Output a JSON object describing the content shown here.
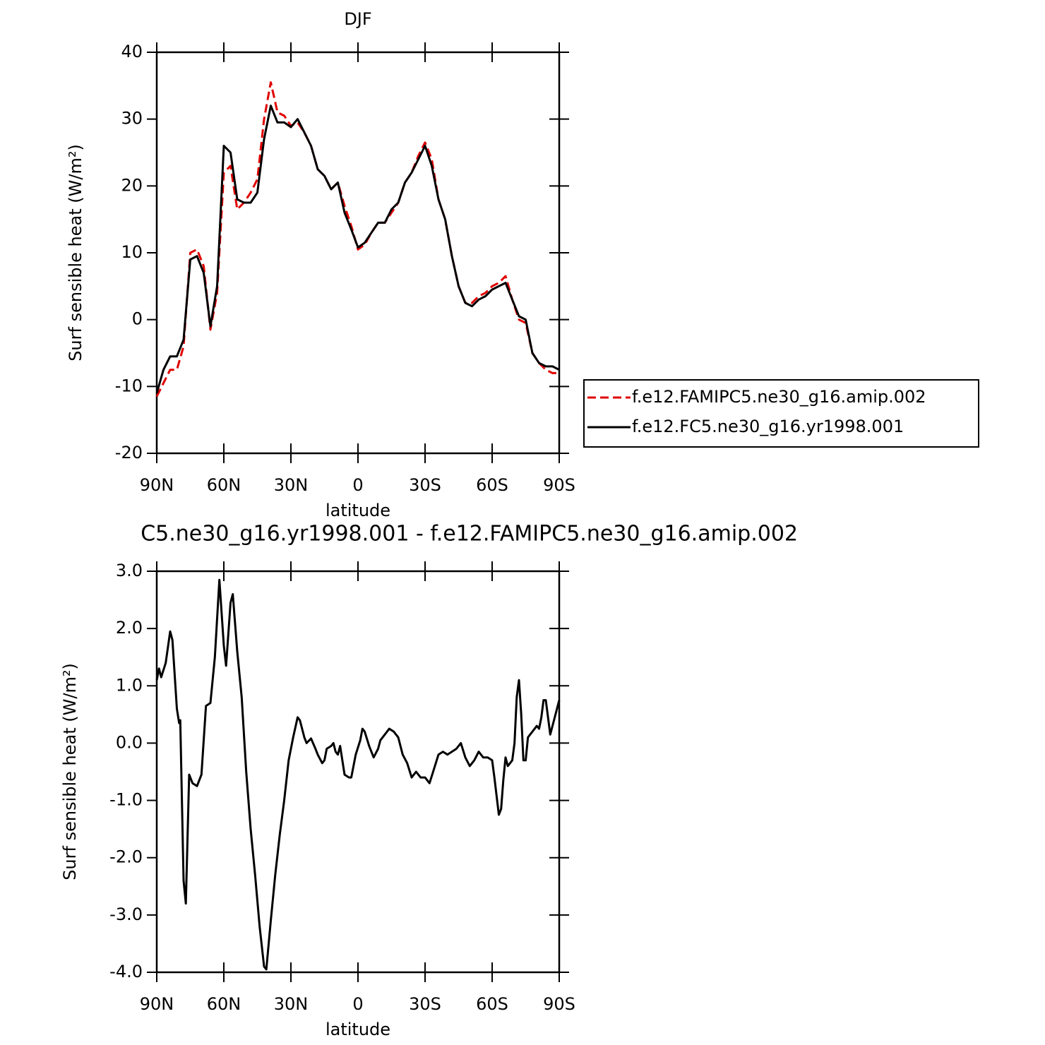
{
  "chart_data": [
    {
      "type": "line",
      "title": "DJF",
      "xlabel": "latitude",
      "ylabel": "Surf sensible heat (W/m²)",
      "x": [
        90,
        87,
        84,
        81,
        78,
        75,
        72,
        69,
        66,
        63,
        60,
        57,
        54,
        51,
        48,
        45,
        42,
        39,
        36,
        33,
        30,
        27,
        24,
        21,
        18,
        15,
        12,
        9,
        6,
        3,
        0,
        -3,
        -6,
        -9,
        -12,
        -15,
        -18,
        -21,
        -24,
        -27,
        -30,
        -33,
        -36,
        -39,
        -42,
        -45,
        -48,
        -51,
        -54,
        -57,
        -60,
        -63,
        -66,
        -69,
        -72,
        -75,
        -78,
        -81,
        -84,
        -87,
        -90
      ],
      "series": [
        {
          "name": "f.e12.FAMIPC5.ne30_g16.amip.002",
          "color": "#e00000",
          "dash": true,
          "values": [
            -11.5,
            -9.5,
            -7.5,
            -7.5,
            -4,
            10,
            10.5,
            8,
            -1.5,
            4,
            22,
            23,
            16.5,
            17.5,
            19,
            21,
            30,
            35.5,
            31,
            30.5,
            29,
            29.5,
            28,
            26,
            22.5,
            21.5,
            19.5,
            20.5,
            17,
            14,
            10.5,
            11.2,
            13,
            14.5,
            14.5,
            16,
            17.5,
            20.5,
            22,
            24.5,
            26.5,
            24,
            18,
            15,
            9.5,
            5,
            2.5,
            2.5,
            3.5,
            4,
            5,
            5.5,
            6.5,
            3,
            0,
            -0.5,
            -5,
            -6.5,
            -7.5,
            -8,
            -8
          ]
        },
        {
          "name": "f.e12.FC5.ne30_g16.yr1998.001",
          "color": "#000000",
          "dash": false,
          "values": [
            -11,
            -7.5,
            -5.5,
            -5.5,
            -3,
            9,
            9.5,
            7,
            -1,
            5,
            26,
            25,
            18,
            17.5,
            17.5,
            19,
            27,
            32,
            29.5,
            29.5,
            28.8,
            30,
            28,
            26,
            22.5,
            21.5,
            19.5,
            20.5,
            16,
            13.5,
            10.8,
            11.5,
            13,
            14.5,
            14.5,
            16.5,
            17.5,
            20.5,
            22,
            24,
            26,
            23,
            18,
            15,
            9.5,
            5,
            2.5,
            2,
            3,
            3.5,
            4.5,
            5,
            5.5,
            3,
            0.5,
            0,
            -5,
            -6.5,
            -7,
            -7,
            -7.5
          ]
        }
      ],
      "xlim": [
        90,
        -90
      ],
      "xticks": [
        {
          "value": 90,
          "label": "90N"
        },
        {
          "value": 60,
          "label": "60N"
        },
        {
          "value": 30,
          "label": "30N"
        },
        0,
        {
          "value": -30,
          "label": "30S"
        },
        {
          "value": -60,
          "label": "60S"
        },
        {
          "value": -90,
          "label": "90S"
        }
      ],
      "ylim": [
        -20,
        40
      ],
      "yticks": [
        -20,
        -10,
        0,
        10,
        20,
        30,
        40
      ],
      "legend": "right"
    },
    {
      "type": "line",
      "title": "C5.ne30_g16.yr1998.001 - f.e12.FAMIPC5.ne30_g16.amip.002",
      "xlabel": "latitude",
      "ylabel": "Surf sensible heat (W/m²)",
      "x": [
        90,
        89,
        88,
        86,
        84,
        83,
        81,
        80,
        79.5,
        78,
        77,
        75.5,
        74,
        72,
        70,
        68,
        66,
        64,
        62,
        60,
        59,
        57,
        56,
        54,
        52,
        50,
        48,
        46,
        44,
        42,
        41,
        39,
        37,
        35,
        33,
        31,
        29,
        27,
        26,
        24,
        23,
        21,
        19,
        18,
        16,
        15,
        14,
        12,
        11,
        10,
        9,
        8,
        6,
        4,
        3,
        1,
        -1,
        -2,
        -3,
        -5,
        -7,
        -9,
        -10,
        -12,
        -14,
        -16,
        -18,
        -20,
        -22,
        -24,
        -26,
        -28,
        -30,
        -32,
        -34,
        -36,
        -38,
        -40,
        -42,
        -44,
        -46,
        -48,
        -50,
        -52,
        -54,
        -56,
        -58,
        -60,
        -61,
        -63,
        -64,
        -65,
        -66,
        -67,
        -69,
        -70,
        -71,
        -72,
        -73,
        -74,
        -75,
        -76,
        -78,
        -80,
        -81,
        -82,
        -83,
        -84,
        -86,
        -88,
        -90
      ],
      "series": [
        {
          "color": "#000000",
          "dash": false,
          "values": [
            1.1,
            1.3,
            1.15,
            1.4,
            1.95,
            1.8,
            0.6,
            0.35,
            0.4,
            -2.4,
            -2.8,
            -0.55,
            -0.7,
            -0.75,
            -0.55,
            0.65,
            0.7,
            1.5,
            2.85,
            1.7,
            1.35,
            2.45,
            2.6,
            1.6,
            0.8,
            -0.5,
            -1.5,
            -2.3,
            -3.2,
            -3.9,
            -3.95,
            -3.1,
            -2.3,
            -1.6,
            -1.0,
            -0.3,
            0.1,
            0.45,
            0.4,
            0.1,
            0.0,
            0.08,
            -0.1,
            -0.2,
            -0.35,
            -0.3,
            -0.1,
            -0.05,
            0,
            -0.15,
            -0.2,
            -0.05,
            -0.55,
            -0.6,
            -0.6,
            -0.2,
            0.05,
            0.25,
            0.2,
            -0.05,
            -0.25,
            -0.1,
            0.05,
            0.15,
            0.25,
            0.2,
            0.1,
            -0.2,
            -0.35,
            -0.6,
            -0.5,
            -0.6,
            -0.6,
            -0.7,
            -0.45,
            -0.2,
            -0.15,
            -0.2,
            -0.15,
            -0.1,
            0.0,
            -0.25,
            -0.4,
            -0.3,
            -0.15,
            -0.25,
            -0.25,
            -0.3,
            -0.6,
            -1.25,
            -1.15,
            -0.65,
            -0.25,
            -0.4,
            -0.3,
            0.0,
            0.8,
            1.1,
            0.5,
            -0.3,
            -0.3,
            0.1,
            0.2,
            0.3,
            0.25,
            0.45,
            0.75,
            0.75,
            0.15,
            0.45,
            0.75
          ]
        }
      ],
      "xlim": [
        90,
        -90
      ],
      "xticks": [
        {
          "value": 90,
          "label": "90N"
        },
        {
          "value": 60,
          "label": "60N"
        },
        {
          "value": 30,
          "label": "30N"
        },
        0,
        {
          "value": -30,
          "label": "30S"
        },
        {
          "value": -60,
          "label": "60S"
        },
        {
          "value": -90,
          "label": "90S"
        }
      ],
      "ylim": [
        -4,
        3
      ],
      "yticks": [
        {
          "value": -4,
          "label": "-4.0"
        },
        {
          "value": -3,
          "label": "-3.0"
        },
        {
          "value": -2,
          "label": "-2.0"
        },
        {
          "value": -1,
          "label": "-1.0"
        },
        {
          "value": 0,
          "label": "0.0"
        },
        {
          "value": 1,
          "label": "1.0"
        },
        {
          "value": 2,
          "label": "2.0"
        },
        {
          "value": 3,
          "label": "3.0"
        }
      ]
    }
  ]
}
